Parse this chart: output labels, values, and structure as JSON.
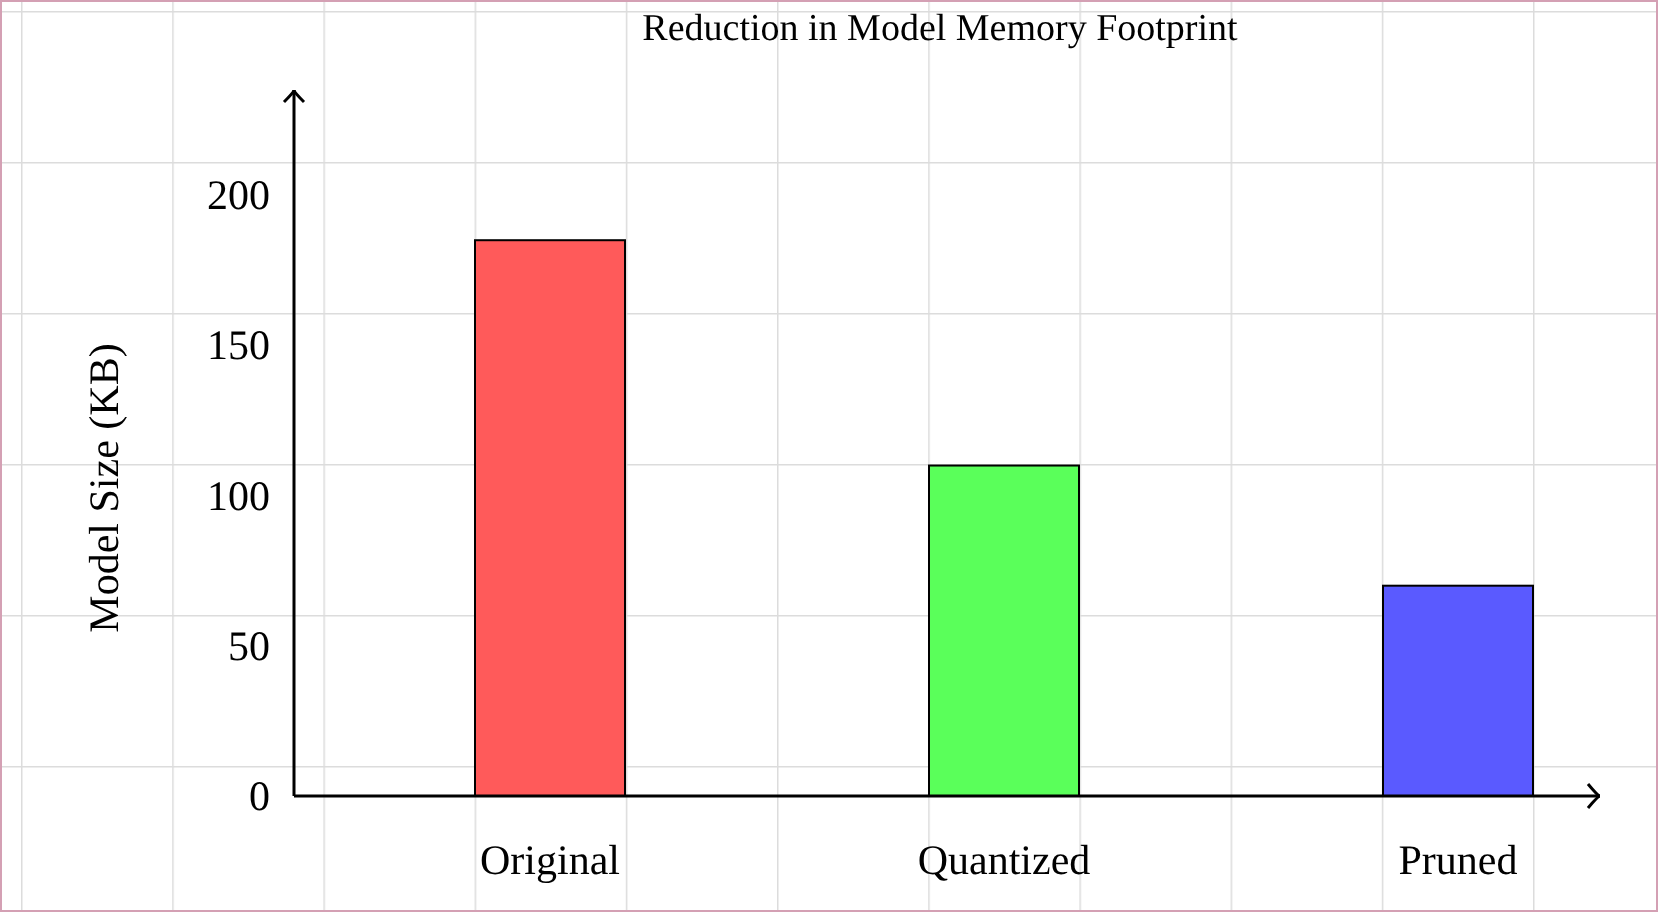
{
  "chart_data": {
    "type": "bar",
    "title": "Reduction in Model Memory Footprint",
    "ylabel": "Model Size (KB)",
    "categories": [
      "Original",
      "Quantized",
      "Pruned"
    ],
    "values": [
      185,
      110,
      70
    ],
    "colors": [
      "#ff5a5a",
      "#5aff5a",
      "#5a5aff"
    ],
    "ylim": [
      0,
      235
    ],
    "yticks": [
      0,
      50,
      100,
      150,
      200
    ],
    "grid": false
  }
}
